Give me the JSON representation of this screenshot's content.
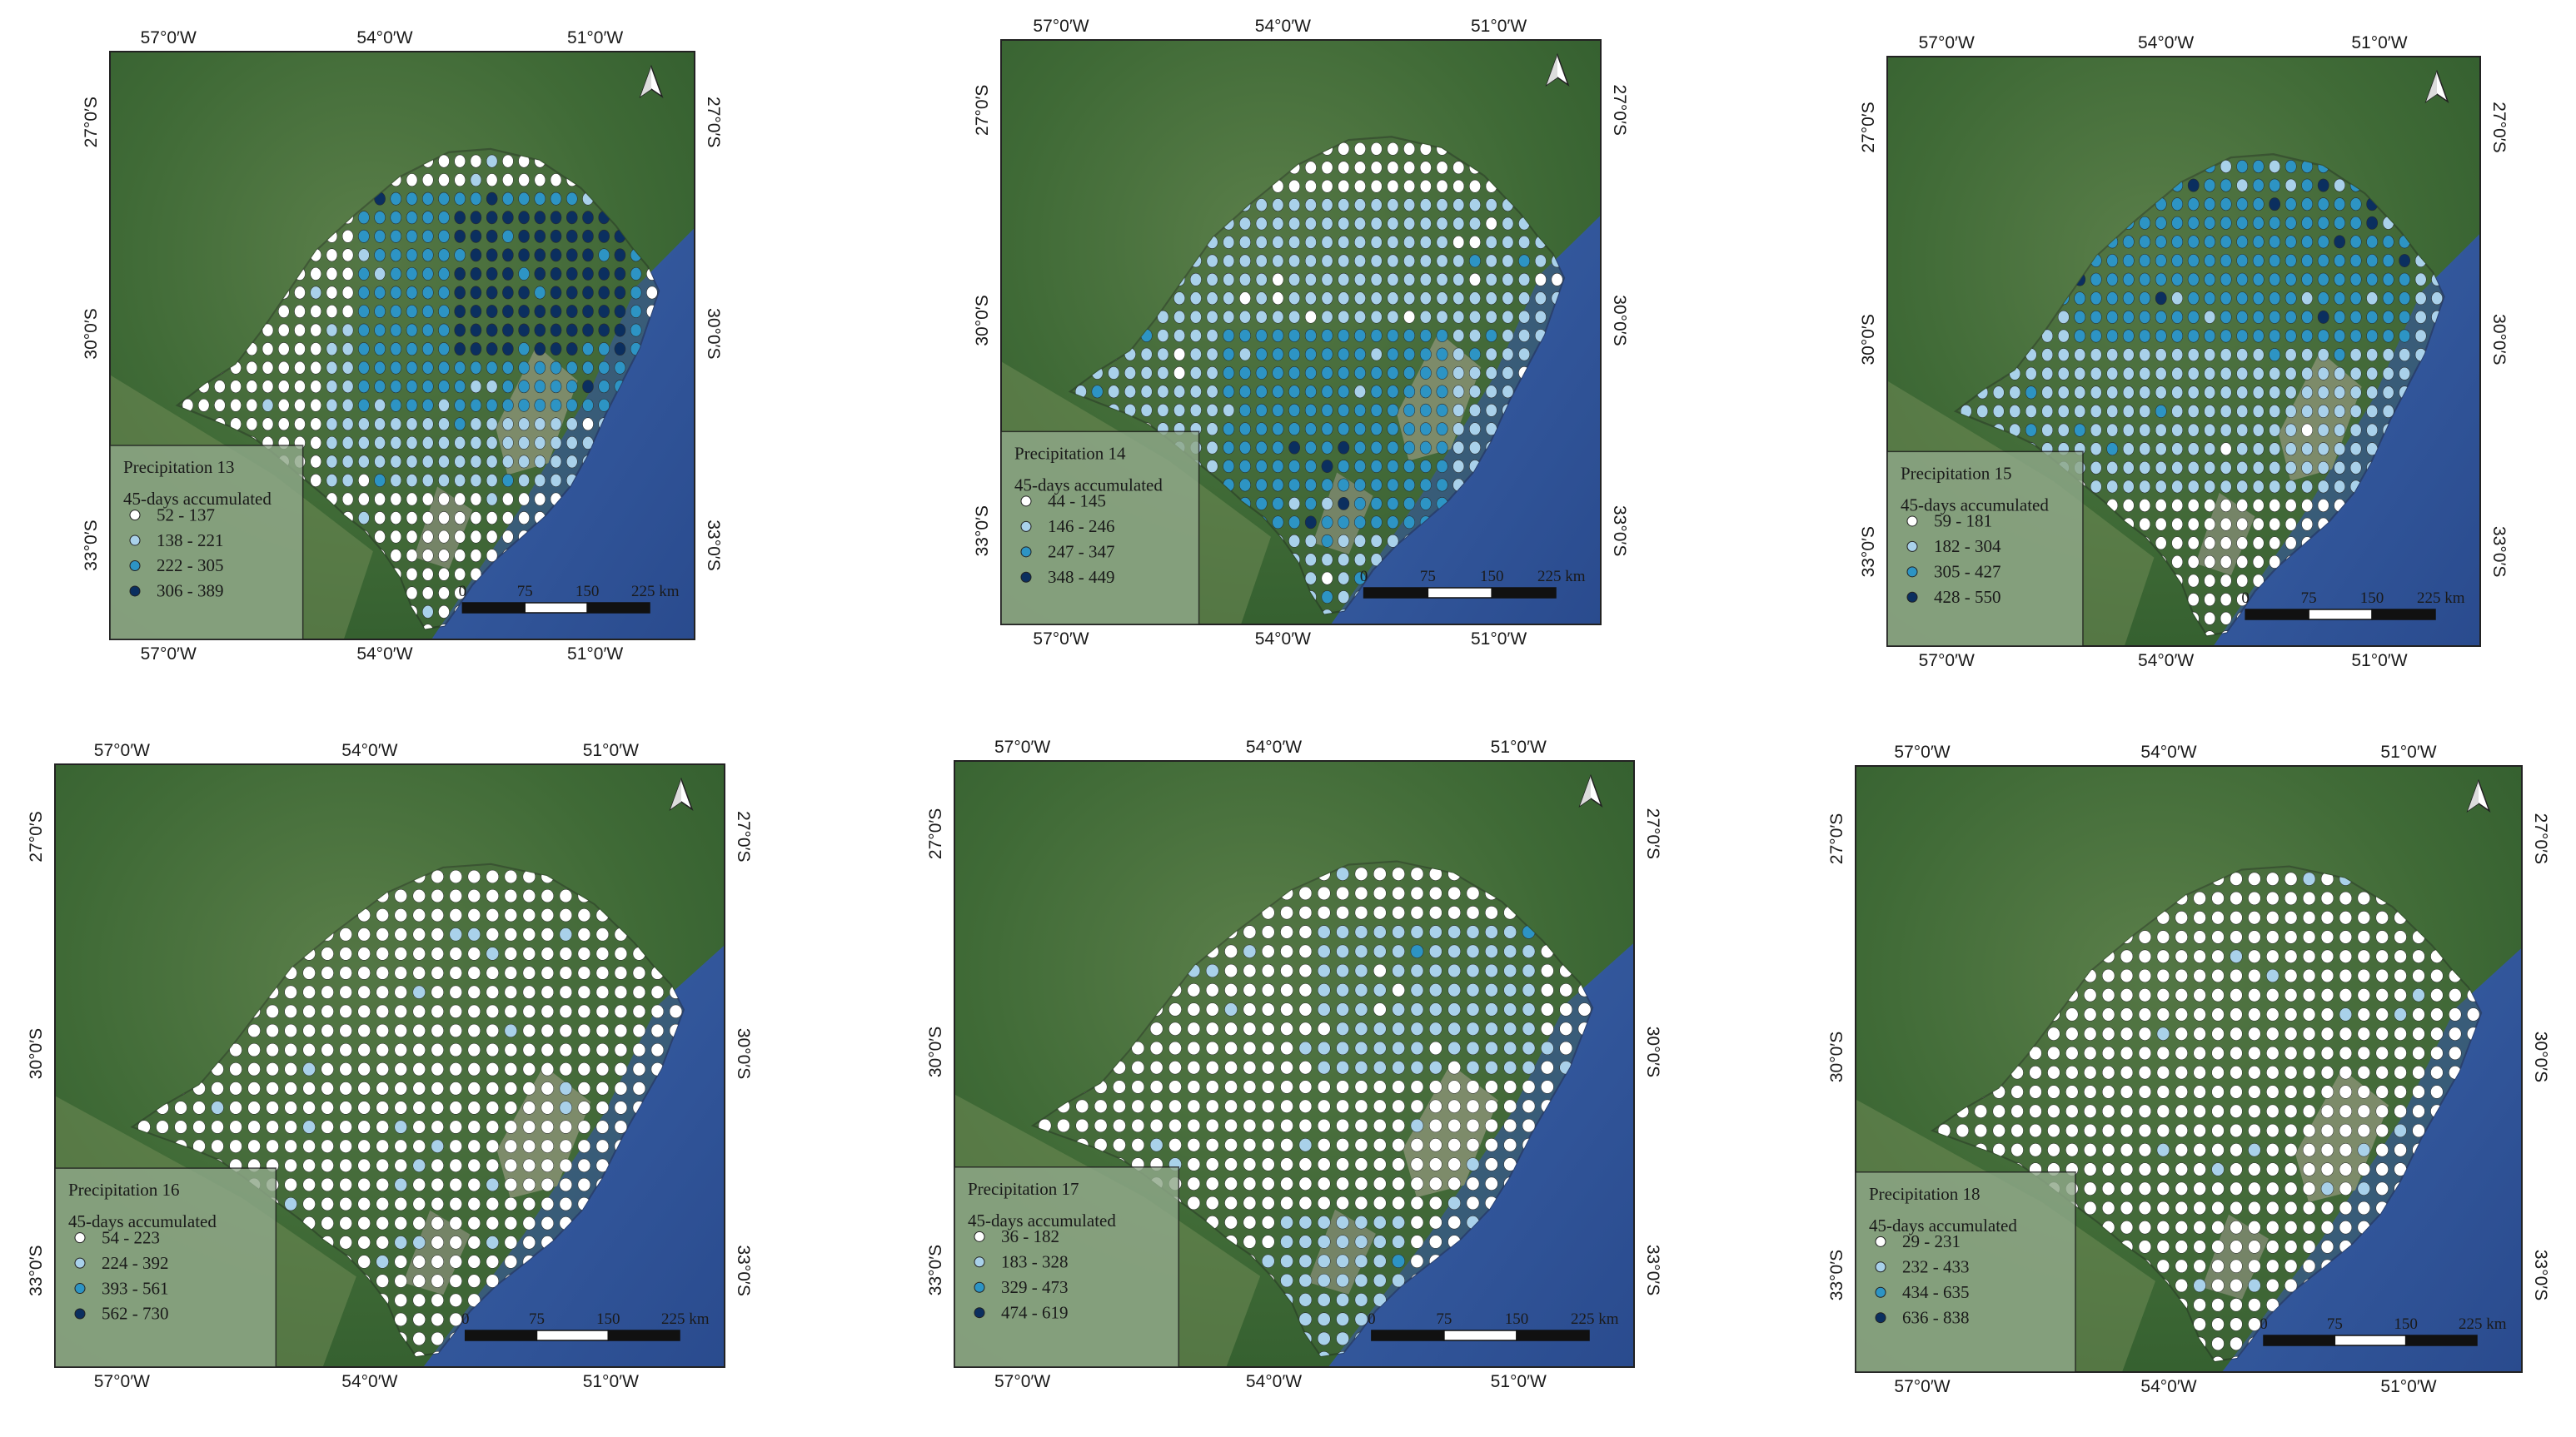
{
  "figure": {
    "coordinate_labels": {
      "lon": [
        "57°0′W",
        "54°0′W",
        "51°0′W"
      ],
      "lat": [
        "27°0′S",
        "30°0′S",
        "33°0′S"
      ]
    },
    "subtitle": "45-days accumulated",
    "scale_bar": {
      "labels": [
        "0",
        "75",
        "150",
        "225 km"
      ]
    },
    "north_arrow": "north-arrow-icon",
    "class_colors": [
      "#ffffff",
      "#a9d1ea",
      "#2d94c4",
      "#0b2f5f"
    ],
    "panels": [
      {
        "title": "Precipitation 13",
        "ranges": [
          "52 - 137",
          "138 - 221",
          "222 - 305",
          "306 - 389"
        ]
      },
      {
        "title": "Precipitation 14",
        "ranges": [
          "44 - 145",
          "146 - 246",
          "247 - 347",
          "348 - 449"
        ]
      },
      {
        "title": "Precipitation 15",
        "ranges": [
          "59 - 181",
          "182 - 304",
          "305 - 427",
          "428 - 550"
        ]
      },
      {
        "title": "Precipitation 16",
        "ranges": [
          "54 - 223",
          "224 - 392",
          "393 - 561",
          "562 - 730"
        ]
      },
      {
        "title": "Precipitation 17",
        "ranges": [
          "36 - 182",
          "183 - 328",
          "329 - 473",
          "474 - 619"
        ]
      },
      {
        "title": "Precipitation 18",
        "ranges": [
          "29 - 231",
          "232 - 433",
          "434 - 635",
          "636 - 838"
        ]
      }
    ]
  }
}
